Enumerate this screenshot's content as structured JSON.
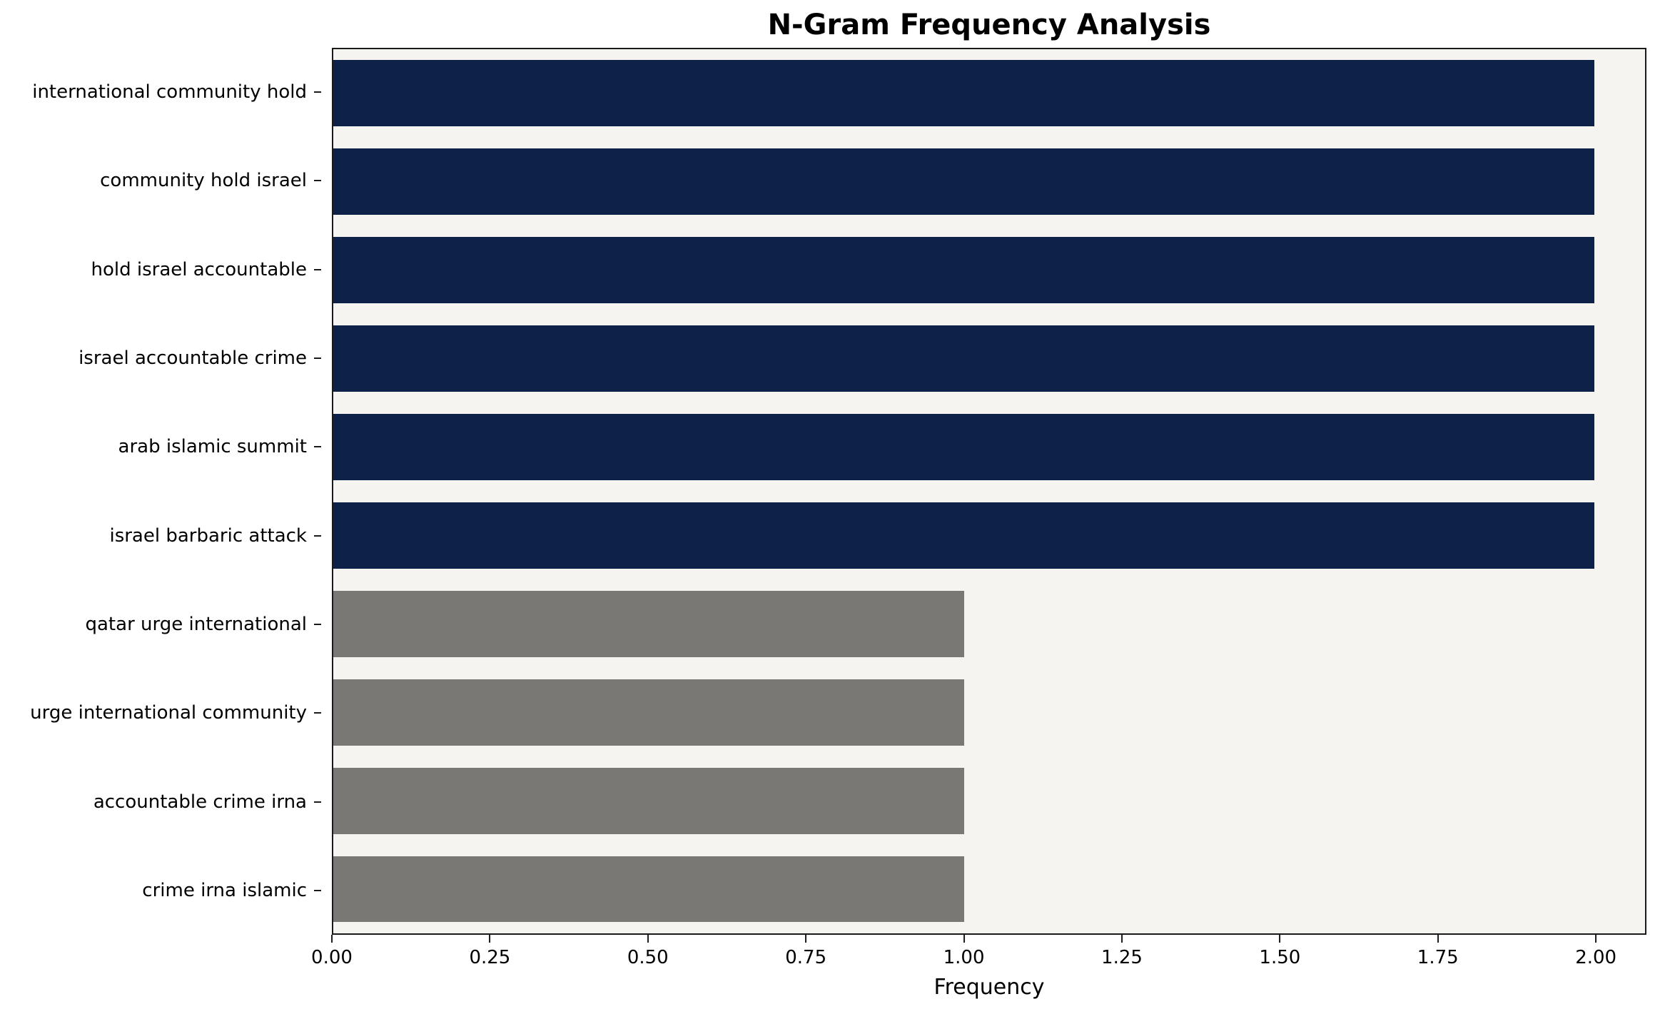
{
  "chart_data": {
    "type": "bar",
    "orientation": "horizontal",
    "title": "N-Gram Frequency Analysis",
    "xlabel": "Frequency",
    "ylabel": "",
    "categories": [
      "international community hold",
      "community hold israel",
      "hold israel accountable",
      "israel accountable crime",
      "arab islamic summit",
      "israel barbaric attack",
      "qatar urge international",
      "urge international community",
      "accountable crime irna",
      "crime irna islamic"
    ],
    "values": [
      2,
      2,
      2,
      2,
      2,
      2,
      1,
      1,
      1,
      1
    ],
    "bar_colors": [
      "#0d2149",
      "#0d2149",
      "#0d2149",
      "#0d2149",
      "#0d2149",
      "#0d2149",
      "#7a7874",
      "#7a7874",
      "#7a7874",
      "#7a7874"
    ],
    "xlim": [
      0,
      2.08
    ],
    "xticks": [
      0,
      0.25,
      0.5,
      0.75,
      1.0,
      1.25,
      1.5,
      1.75,
      2.0
    ],
    "xtick_labels": [
      "0.00",
      "0.25",
      "0.50",
      "0.75",
      "1.00",
      "1.25",
      "1.50",
      "1.75",
      "2.00"
    ],
    "grid": false,
    "legend": null,
    "plot_background": "#f5f4f1",
    "figure_background": "#ffffff",
    "colors": {
      "highlight": "#0d2149",
      "muted": "#7a7874"
    }
  }
}
